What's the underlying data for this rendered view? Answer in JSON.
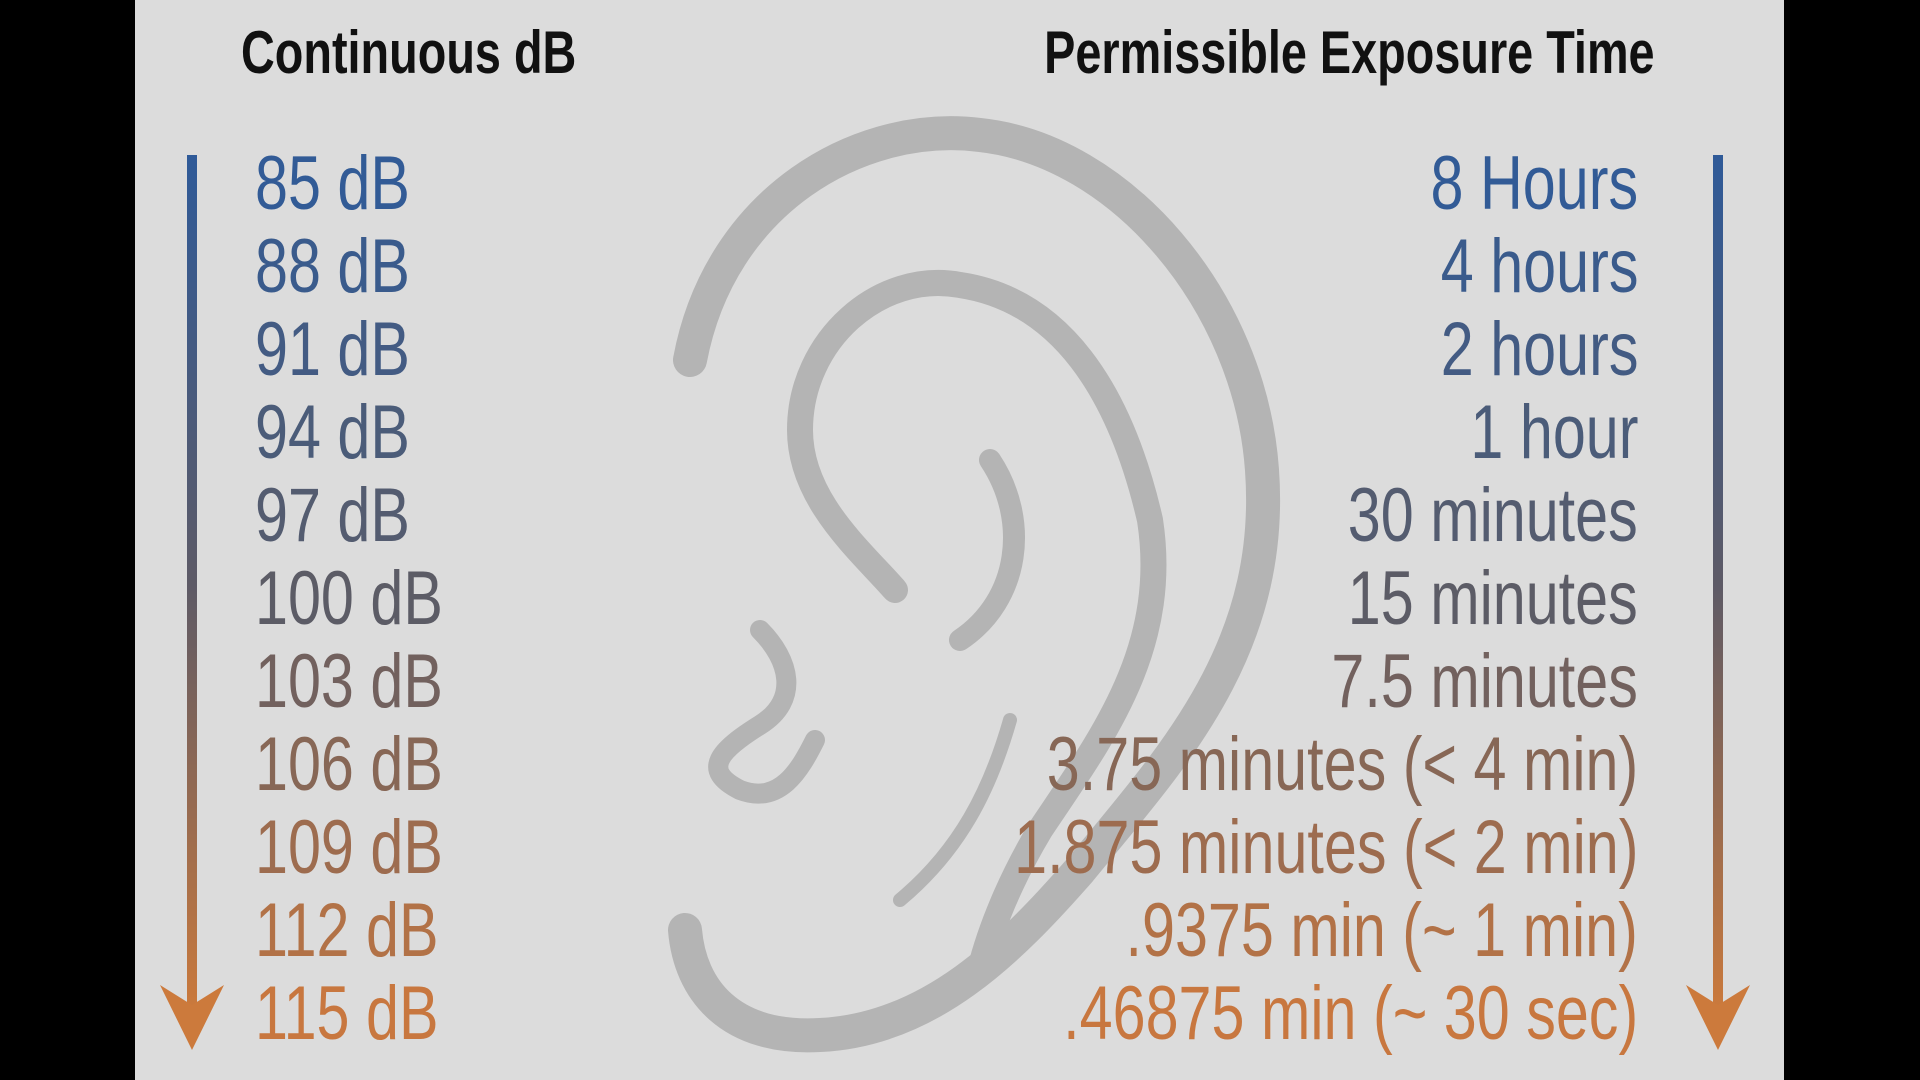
{
  "headers": {
    "left": "Continuous dB",
    "right": "Permissible Exposure Time"
  },
  "colors": {
    "top": "#325b96",
    "middle": "#5c5c66",
    "bottom": "#c8773f",
    "ear": "#b2b2b2",
    "panel": "#dcdcdc"
  },
  "rows": [
    {
      "db": "85 dB",
      "time": "8 Hours"
    },
    {
      "db": "88 dB",
      "time": "4 hours"
    },
    {
      "db": "91 dB",
      "time": "2 hours"
    },
    {
      "db": "94 dB",
      "time": "1 hour"
    },
    {
      "db": "97 dB",
      "time": "30 minutes"
    },
    {
      "db": "100 dB",
      "time": "15 minutes"
    },
    {
      "db": "103 dB",
      "time": "7.5 minutes"
    },
    {
      "db": "106 dB",
      "time": "3.75 minutes (< 4 min)"
    },
    {
      "db": "109 dB",
      "time": "1.875 minutes (< 2 min)"
    },
    {
      "db": "112 dB",
      "time": ".9375 min (~ 1 min)"
    },
    {
      "db": "115 dB",
      "time": ".46875 min (~ 30 sec)"
    }
  ],
  "icons": {
    "background": "ear-icon",
    "arrows": "arrow-down-icon"
  }
}
